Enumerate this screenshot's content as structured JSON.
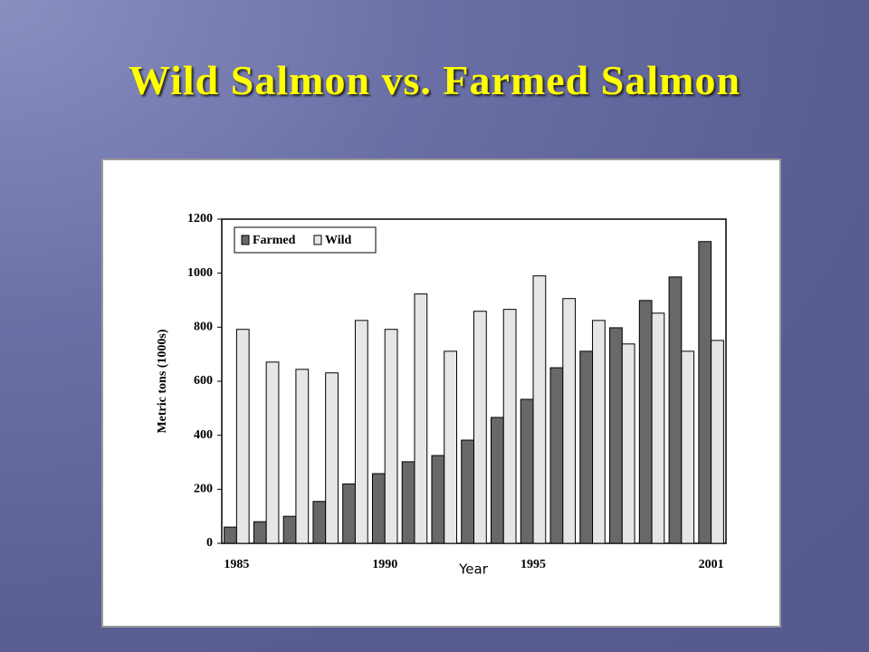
{
  "chart_data": {
    "type": "bar",
    "title": "Wild Salmon vs. Farmed Salmon",
    "categories": [
      "1985",
      null,
      null,
      null,
      null,
      "1990",
      null,
      null,
      null,
      null,
      "1995",
      null,
      null,
      null,
      null,
      null,
      "2001"
    ],
    "series": [
      {
        "name": "Farmed",
        "color": "#686868",
        "values": [
          60,
          80,
          100,
          155,
          220,
          258,
          302,
          325,
          382,
          466,
          533,
          650,
          711,
          798,
          899,
          986,
          1117
        ]
      },
      {
        "name": "Wild",
        "color": "#e6e6e6",
        "values": [
          792,
          671,
          644,
          631,
          825,
          792,
          923,
          711,
          859,
          866,
          990,
          906,
          825,
          738,
          852,
          711,
          751
        ]
      }
    ],
    "ylim": [
      0,
      1200
    ],
    "yticks": [
      0,
      200,
      400,
      600,
      800,
      1000,
      1200
    ],
    "ylabel": "Metric tons (1000s)",
    "xlabel": "Year",
    "legend": "upper left",
    "grid": false
  }
}
